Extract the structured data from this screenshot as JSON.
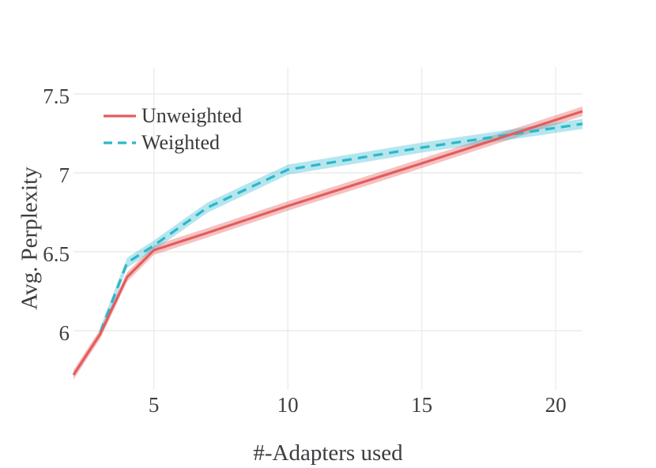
{
  "figure": {
    "background_color": "#ffffff",
    "grid_color": "#ececec",
    "text_color": "#3b3b3b"
  },
  "chart_data": {
    "type": "line",
    "title": "",
    "xlabel": "#-Adapters used",
    "ylabel": "Avg. Perplexity",
    "xlim": [
      2,
      21
    ],
    "ylim": [
      5.69,
      7.67
    ],
    "x_ticks": [
      5,
      10,
      15,
      20
    ],
    "y_ticks": [
      6,
      6.5,
      7,
      7.5
    ],
    "grid": true,
    "legend_position": "top-left",
    "series": [
      {
        "name": "Unweighted",
        "line_style": "solid",
        "color": "#e45c5d",
        "band_color": "rgba(228,92,93,0.38)",
        "band_halfwidth": 0.03,
        "x": [
          2,
          3,
          4,
          5,
          7,
          10,
          15,
          21
        ],
        "y": [
          5.72,
          5.98,
          6.34,
          6.51,
          6.62,
          6.79,
          7.06,
          7.39
        ]
      },
      {
        "name": "Weighted",
        "line_style": "dashed",
        "color": "#2bb7cb",
        "band_color": "rgba(43,184,205,0.35)",
        "band_halfwidth": 0.032,
        "x": [
          3,
          4,
          5,
          7,
          10,
          15,
          21
        ],
        "y": [
          5.99,
          6.43,
          6.54,
          6.78,
          7.02,
          7.16,
          7.31
        ]
      }
    ]
  }
}
